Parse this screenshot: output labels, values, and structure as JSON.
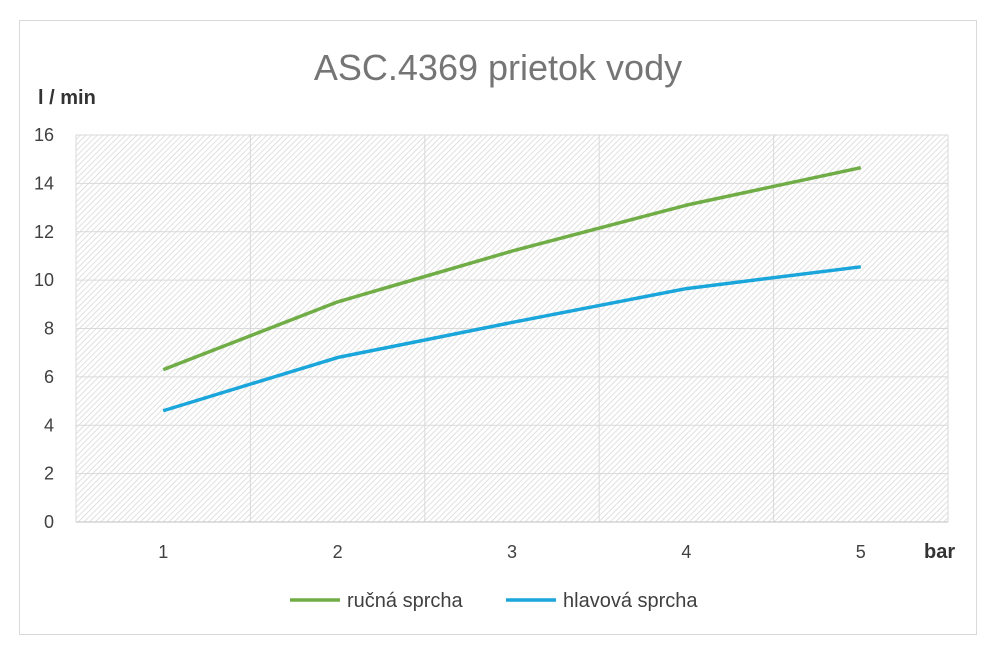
{
  "chart_data": {
    "type": "line",
    "title": "ASC.4369 prietok vody",
    "ylabel": "l / min",
    "xlabel": "bar",
    "x": [
      1,
      2,
      3,
      4,
      5
    ],
    "ylim": [
      0,
      16
    ],
    "yticks": [
      0,
      2,
      4,
      6,
      8,
      10,
      12,
      14,
      16
    ],
    "grid": true,
    "legend_position": "bottom",
    "series": [
      {
        "name": "ručná sprcha",
        "color": "#70ad47",
        "values": [
          6.3,
          9.1,
          11.2,
          13.1,
          14.65
        ]
      },
      {
        "name": "hlavová sprcha",
        "color": "#1ba6db",
        "values": [
          4.6,
          6.8,
          8.25,
          9.65,
          10.55
        ]
      }
    ]
  }
}
